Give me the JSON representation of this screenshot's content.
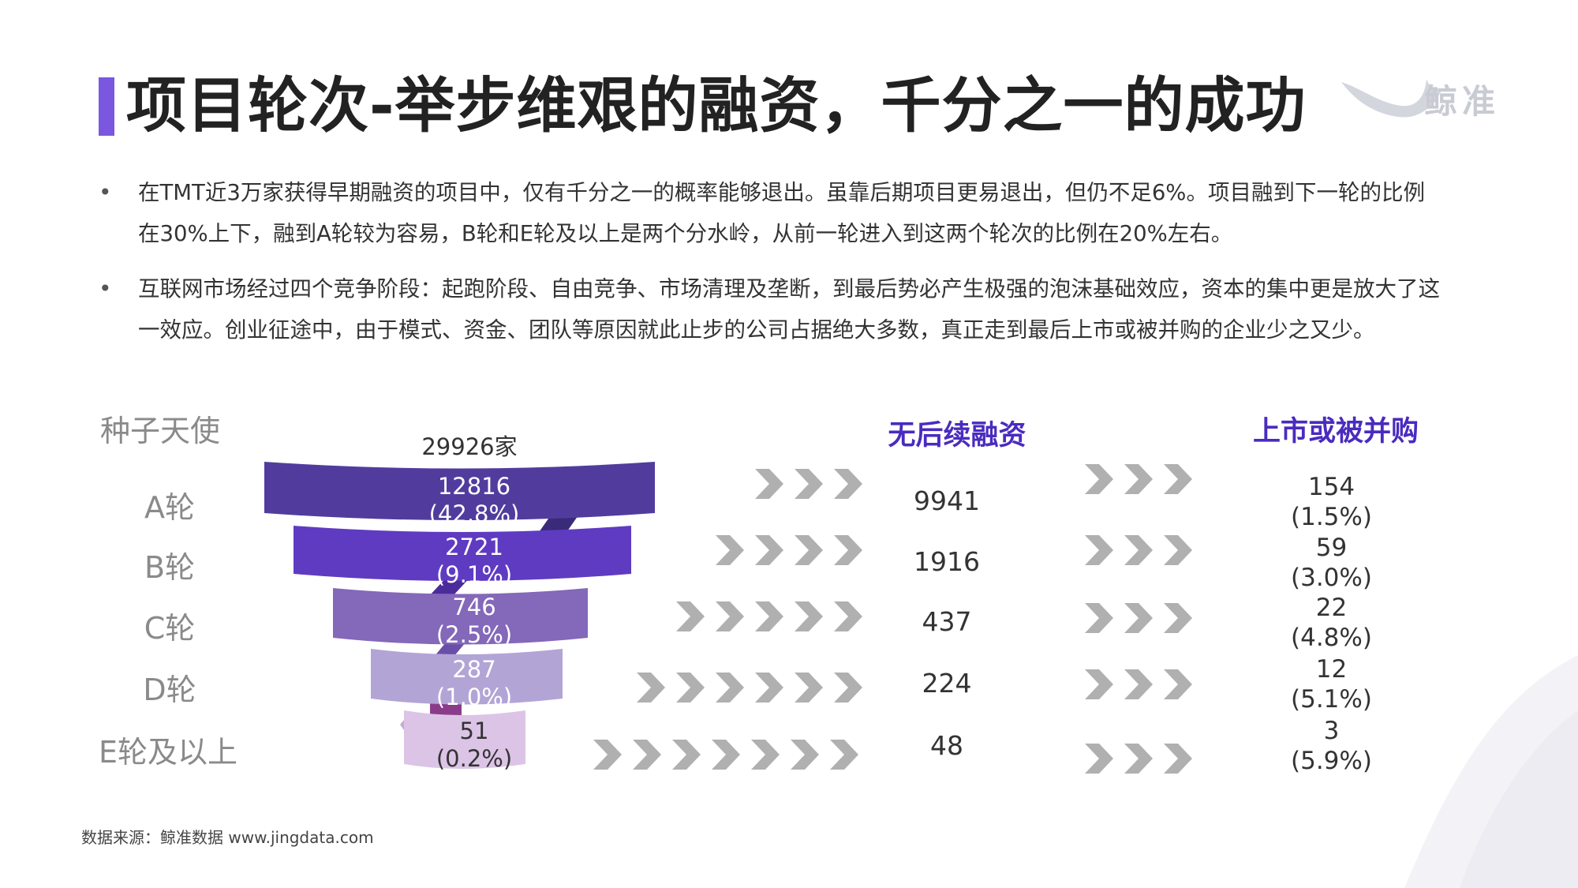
{
  "title": "项目轮次-举步维艰的融资，千分之一的成功",
  "logo": {
    "text": "鲸准",
    "icon": "whale-tail-icon"
  },
  "bullets": [
    "在TMT近3万家获得早期融资的项目中，仅有千分之一的概率能够退出。虽靠后期项目更易退出，但仍不足6%。项目融到下一轮的比例在30%上下，融到A轮较为容易，B轮和E轮及以上是两个分水岭，从前一轮进入到这两个轮次的比例在20%左右。",
    "互联网市场经过四个竞争阶段：起跑阶段、自由竞争、市场清理及垄断，到最后势必产生极强的泡沫基础效应，资本的集中更是放大了这一效应。创业征途中，由于模式、资金、团队等原因就此止步的公司占据绝大多数，真正走到最后上市或被并购的企业少之又少。"
  ],
  "seed": {
    "label": "种子天使",
    "count": "29926家"
  },
  "headers": {
    "no_follow": "无后续融资",
    "ipo_ma": "上市或被并购"
  },
  "rounds": [
    {
      "label": "A轮",
      "count": "12816",
      "pct": "(42.8%)",
      "no_follow": "9941",
      "exit": "154",
      "exit_pct": "(1.5%)"
    },
    {
      "label": "B轮",
      "count": "2721",
      "pct": "(9.1%)",
      "no_follow": "1916",
      "exit": "59",
      "exit_pct": "(3.0%)"
    },
    {
      "label": "C轮",
      "count": "746",
      "pct": "(2.5%)",
      "no_follow": "437",
      "exit": "22",
      "exit_pct": "(4.8%)"
    },
    {
      "label": "D轮",
      "count": "287",
      "pct": "(1.0%)",
      "no_follow": "224",
      "exit": "12",
      "exit_pct": "(5.1%)"
    },
    {
      "label": "E轮及以上",
      "count": "51",
      "pct": "(0.2%)",
      "no_follow": "48",
      "exit": "3",
      "exit_pct": "(5.9%)"
    }
  ],
  "source": "数据来源：鲸准数据 www.jingdata.com",
  "colors": {
    "accent": "#7b57e0",
    "header": "#4a2bbf",
    "band_a": "#513c9e",
    "band_b": "#5f3bc2",
    "band_c": "#8468b9",
    "band_d": "#b3a4d6",
    "band_e": "#dcc4e6",
    "arrow": "#b0b0b0"
  }
}
